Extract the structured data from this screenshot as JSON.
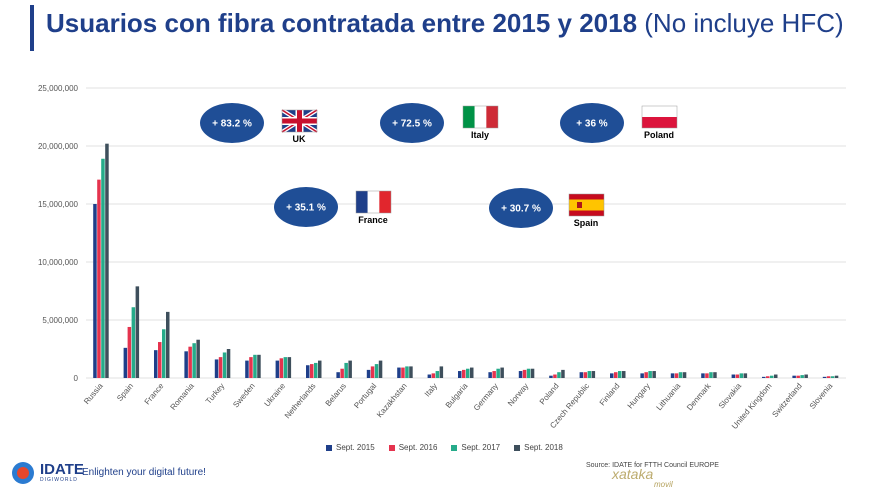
{
  "title": {
    "bold": "Usuarios con fibra contratada entre 2015 y 2018",
    "normal": "(No incluye HFC)"
  },
  "colors": {
    "title": "#1f3f8a",
    "bubble": "#1f4e96"
  },
  "chart_data": {
    "type": "bar",
    "categories": [
      "Russia",
      "Spain",
      "France",
      "Romania",
      "Turkey",
      "Sweden",
      "Ukraine",
      "Netherlands",
      "Belarus",
      "Portugal",
      "Kazakhstan",
      "Italy",
      "Bulgaria",
      "Germany",
      "Norway",
      "Poland",
      "Czech Republic",
      "Finland",
      "Hungary",
      "Lithuania",
      "Denmark",
      "Slovakia",
      "United Kingdom",
      "Switzerland",
      "Slovenia"
    ],
    "series": [
      {
        "name": "Sept. 2015",
        "color": "#1f3f8a",
        "values": [
          15000000,
          2600000,
          2400000,
          2300000,
          1600000,
          1500000,
          1500000,
          1100000,
          500000,
          700000,
          900000,
          300000,
          600000,
          500000,
          600000,
          200000,
          500000,
          400000,
          400000,
          400000,
          400000,
          300000,
          100000,
          200000,
          100000
        ]
      },
      {
        "name": "Sept. 2016",
        "color": "#e5334e",
        "values": [
          17100000,
          4400000,
          3100000,
          2700000,
          1800000,
          1800000,
          1700000,
          1200000,
          800000,
          1000000,
          900000,
          400000,
          700000,
          600000,
          700000,
          300000,
          500000,
          500000,
          500000,
          400000,
          400000,
          300000,
          150000,
          200000,
          150000
        ]
      },
      {
        "name": "Sept. 2017",
        "color": "#26ab8a",
        "values": [
          18900000,
          6100000,
          4200000,
          3000000,
          2200000,
          2000000,
          1800000,
          1300000,
          1300000,
          1200000,
          1000000,
          600000,
          800000,
          800000,
          800000,
          500000,
          600000,
          600000,
          600000,
          500000,
          500000,
          400000,
          200000,
          250000,
          150000
        ]
      },
      {
        "name": "Sept. 2018",
        "color": "#3e4f5c",
        "values": [
          20200000,
          7900000,
          5700000,
          3300000,
          2500000,
          2000000,
          1800000,
          1500000,
          1500000,
          1500000,
          1000000,
          1000000,
          900000,
          900000,
          800000,
          700000,
          600000,
          600000,
          600000,
          500000,
          500000,
          400000,
          300000,
          300000,
          200000
        ]
      }
    ],
    "ylim": [
      0,
      25000000
    ],
    "yticks": [
      "0",
      "5,000,000",
      "10,000,000",
      "15,000,000",
      "20,000,000",
      "25,000,000"
    ],
    "annotations": [
      {
        "value": "+ 83.2 %",
        "country": "UK",
        "flag": "uk"
      },
      {
        "value": "+ 72.5 %",
        "country": "Italy",
        "flag": "italy"
      },
      {
        "value": "+ 36 %",
        "country": "Poland",
        "flag": "poland"
      },
      {
        "value": "+ 35.1 %",
        "country": "France",
        "flag": "france"
      },
      {
        "value": "+ 30.7 %",
        "country": "Spain",
        "flag": "spain"
      }
    ]
  },
  "footer": {
    "logo": "IDATE",
    "logo_sub": "DIGIWORLD",
    "tagline": "Enlighten your digital future!",
    "source": "Source: IDATE for FTTH Council EUROPE",
    "watermark": "xataka",
    "watermark_sub": "movil"
  }
}
